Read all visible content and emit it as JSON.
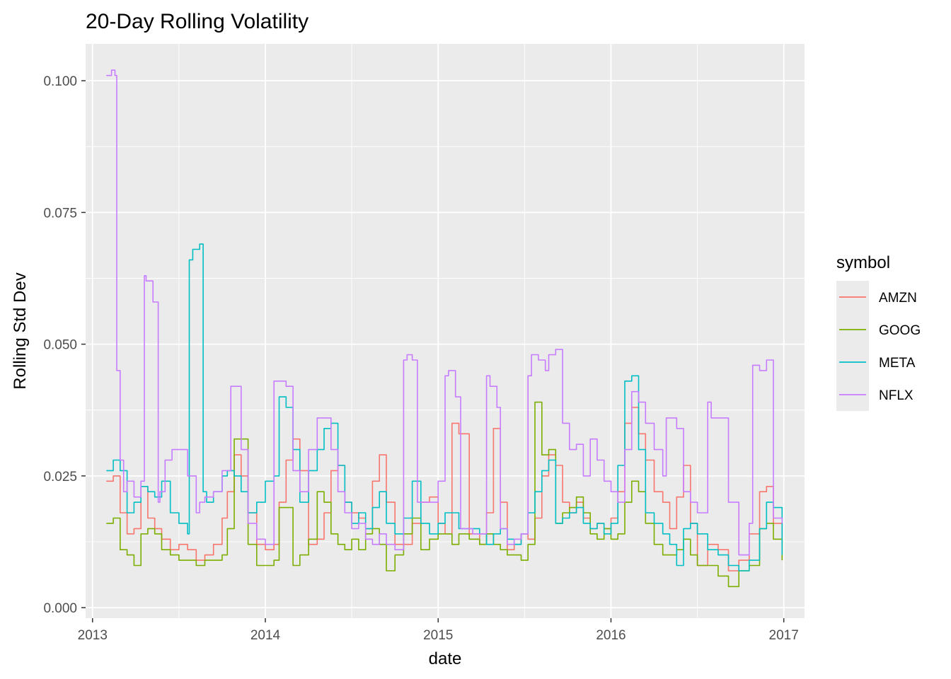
{
  "chart_data": {
    "type": "line",
    "title": "20-Day Rolling Volatility",
    "xlabel": "date",
    "ylabel": "Rolling Std Dev",
    "xlim": [
      2012.96,
      2017.12
    ],
    "ylim": [
      -0.002,
      0.107
    ],
    "x_ticks": [
      2013,
      2014,
      2015,
      2016,
      2017
    ],
    "x_tick_labels": [
      "2013",
      "2014",
      "2015",
      "2016",
      "2017"
    ],
    "y_ticks": [
      0.0,
      0.025,
      0.05,
      0.075,
      0.1
    ],
    "y_tick_labels": [
      "0.000",
      "0.025",
      "0.050",
      "0.075",
      "0.100"
    ],
    "grid": true,
    "legend": {
      "title": "symbol",
      "position": "right"
    },
    "series": [
      {
        "name": "AMZN",
        "color": "#F8766D",
        "x": [
          2013.08,
          2013.12,
          2013.16,
          2013.2,
          2013.24,
          2013.28,
          2013.32,
          2013.36,
          2013.4,
          2013.45,
          2013.5,
          2013.55,
          2013.6,
          2013.65,
          2013.7,
          2013.75,
          2013.78,
          2013.82,
          2013.86,
          2013.9,
          2013.95,
          2014.0,
          2014.05,
          2014.08,
          2014.12,
          2014.16,
          2014.2,
          2014.25,
          2014.3,
          2014.34,
          2014.38,
          2014.42,
          2014.46,
          2014.5,
          2014.54,
          2014.58,
          2014.62,
          2014.66,
          2014.7,
          2014.75,
          2014.8,
          2014.85,
          2014.9,
          2014.95,
          2015.0,
          2015.04,
          2015.08,
          2015.12,
          2015.18,
          2015.24,
          2015.28,
          2015.32,
          2015.36,
          2015.4,
          2015.44,
          2015.48,
          2015.52,
          2015.56,
          2015.6,
          2015.64,
          2015.68,
          2015.72,
          2015.76,
          2015.8,
          2015.84,
          2015.88,
          2015.92,
          2015.96,
          2016.0,
          2016.04,
          2016.08,
          2016.12,
          2016.16,
          2016.2,
          2016.25,
          2016.3,
          2016.34,
          2016.38,
          2016.42,
          2016.46,
          2016.5,
          2016.56,
          2016.62,
          2016.68,
          2016.74,
          2016.8,
          2016.86,
          2016.9,
          2016.94,
          2016.99
        ],
        "y": [
          0.024,
          0.025,
          0.018,
          0.014,
          0.015,
          0.023,
          0.017,
          0.015,
          0.013,
          0.011,
          0.012,
          0.011,
          0.009,
          0.01,
          0.012,
          0.017,
          0.022,
          0.029,
          0.025,
          0.018,
          0.012,
          0.011,
          0.012,
          0.02,
          0.028,
          0.032,
          0.026,
          0.012,
          0.013,
          0.018,
          0.026,
          0.027,
          0.02,
          0.018,
          0.017,
          0.015,
          0.024,
          0.029,
          0.02,
          0.012,
          0.012,
          0.016,
          0.02,
          0.021,
          0.016,
          0.014,
          0.035,
          0.033,
          0.014,
          0.012,
          0.018,
          0.034,
          0.02,
          0.011,
          0.012,
          0.014,
          0.013,
          0.017,
          0.025,
          0.029,
          0.027,
          0.02,
          0.018,
          0.02,
          0.017,
          0.015,
          0.016,
          0.015,
          0.017,
          0.022,
          0.035,
          0.038,
          0.033,
          0.028,
          0.022,
          0.02,
          0.015,
          0.021,
          0.027,
          0.016,
          0.008,
          0.012,
          0.011,
          0.007,
          0.009,
          0.014,
          0.022,
          0.023,
          0.016,
          0.012
        ]
      },
      {
        "name": "GOOG",
        "color": "#7CAE00",
        "x": [
          2013.08,
          2013.12,
          2013.16,
          2013.2,
          2013.24,
          2013.28,
          2013.32,
          2013.36,
          2013.4,
          2013.45,
          2013.5,
          2013.55,
          2013.6,
          2013.65,
          2013.7,
          2013.75,
          2013.78,
          2013.82,
          2013.86,
          2013.9,
          2013.95,
          2014.0,
          2014.05,
          2014.08,
          2014.12,
          2014.16,
          2014.2,
          2014.25,
          2014.3,
          2014.34,
          2014.38,
          2014.42,
          2014.46,
          2014.5,
          2014.54,
          2014.58,
          2014.62,
          2014.66,
          2014.7,
          2014.75,
          2014.8,
          2014.85,
          2014.9,
          2014.95,
          2015.0,
          2015.04,
          2015.08,
          2015.12,
          2015.18,
          2015.24,
          2015.28,
          2015.32,
          2015.36,
          2015.4,
          2015.44,
          2015.48,
          2015.52,
          2015.56,
          2015.6,
          2015.64,
          2015.68,
          2015.72,
          2015.76,
          2015.8,
          2015.84,
          2015.88,
          2015.92,
          2015.96,
          2016.0,
          2016.04,
          2016.08,
          2016.12,
          2016.16,
          2016.2,
          2016.25,
          2016.3,
          2016.34,
          2016.38,
          2016.42,
          2016.46,
          2016.5,
          2016.56,
          2016.62,
          2016.68,
          2016.74,
          2016.8,
          2016.86,
          2016.9,
          2016.94,
          2016.99
        ],
        "y": [
          0.016,
          0.017,
          0.011,
          0.01,
          0.008,
          0.014,
          0.015,
          0.014,
          0.011,
          0.01,
          0.009,
          0.009,
          0.008,
          0.009,
          0.009,
          0.01,
          0.015,
          0.032,
          0.032,
          0.012,
          0.008,
          0.008,
          0.009,
          0.019,
          0.019,
          0.008,
          0.01,
          0.013,
          0.022,
          0.02,
          0.014,
          0.012,
          0.011,
          0.013,
          0.011,
          0.014,
          0.015,
          0.012,
          0.007,
          0.01,
          0.014,
          0.017,
          0.011,
          0.013,
          0.014,
          0.014,
          0.012,
          0.014,
          0.013,
          0.012,
          0.014,
          0.012,
          0.011,
          0.01,
          0.01,
          0.009,
          0.012,
          0.039,
          0.029,
          0.03,
          0.016,
          0.018,
          0.019,
          0.021,
          0.018,
          0.014,
          0.013,
          0.015,
          0.013,
          0.014,
          0.02,
          0.024,
          0.022,
          0.016,
          0.012,
          0.01,
          0.01,
          0.011,
          0.013,
          0.01,
          0.008,
          0.008,
          0.006,
          0.004,
          0.007,
          0.008,
          0.015,
          0.016,
          0.013,
          0.009
        ]
      },
      {
        "name": "META",
        "color": "#00BFC4",
        "x": [
          2013.08,
          2013.12,
          2013.16,
          2013.2,
          2013.24,
          2013.28,
          2013.32,
          2013.36,
          2013.4,
          2013.45,
          2013.5,
          2013.55,
          2013.56,
          2013.58,
          2013.62,
          2013.64,
          2013.66,
          2013.7,
          2013.75,
          2013.78,
          2013.82,
          2013.86,
          2013.9,
          2013.95,
          2014.0,
          2014.05,
          2014.08,
          2014.12,
          2014.16,
          2014.2,
          2014.25,
          2014.3,
          2014.34,
          2014.38,
          2014.42,
          2014.46,
          2014.5,
          2014.54,
          2014.58,
          2014.62,
          2014.66,
          2014.7,
          2014.75,
          2014.8,
          2014.85,
          2014.9,
          2014.95,
          2015.0,
          2015.04,
          2015.08,
          2015.12,
          2015.18,
          2015.24,
          2015.28,
          2015.32,
          2015.36,
          2015.4,
          2015.44,
          2015.48,
          2015.52,
          2015.56,
          2015.6,
          2015.64,
          2015.68,
          2015.72,
          2015.76,
          2015.8,
          2015.84,
          2015.88,
          2015.92,
          2015.96,
          2016.0,
          2016.04,
          2016.08,
          2016.12,
          2016.16,
          2016.2,
          2016.25,
          2016.3,
          2016.34,
          2016.38,
          2016.42,
          2016.46,
          2016.5,
          2016.56,
          2016.62,
          2016.68,
          2016.74,
          2016.8,
          2016.86,
          2016.9,
          2016.94,
          2016.99
        ],
        "y": [
          0.026,
          0.028,
          0.026,
          0.018,
          0.02,
          0.023,
          0.022,
          0.021,
          0.024,
          0.018,
          0.016,
          0.014,
          0.066,
          0.068,
          0.069,
          0.022,
          0.02,
          0.022,
          0.025,
          0.026,
          0.025,
          0.022,
          0.018,
          0.02,
          0.024,
          0.025,
          0.04,
          0.038,
          0.03,
          0.02,
          0.026,
          0.03,
          0.034,
          0.035,
          0.027,
          0.02,
          0.016,
          0.018,
          0.015,
          0.019,
          0.022,
          0.016,
          0.014,
          0.017,
          0.024,
          0.016,
          0.014,
          0.016,
          0.018,
          0.018,
          0.015,
          0.015,
          0.014,
          0.012,
          0.014,
          0.015,
          0.013,
          0.012,
          0.014,
          0.018,
          0.022,
          0.026,
          0.028,
          0.016,
          0.017,
          0.018,
          0.019,
          0.016,
          0.015,
          0.016,
          0.014,
          0.016,
          0.027,
          0.043,
          0.044,
          0.03,
          0.018,
          0.016,
          0.014,
          0.012,
          0.008,
          0.015,
          0.016,
          0.014,
          0.011,
          0.01,
          0.008,
          0.007,
          0.009,
          0.015,
          0.02,
          0.019,
          0.01
        ]
      },
      {
        "name": "NFLX",
        "color": "#C77CFF",
        "x": [
          2013.08,
          2013.11,
          2013.13,
          2013.14,
          2013.16,
          2013.18,
          2013.2,
          2013.24,
          2013.28,
          2013.3,
          2013.31,
          2013.35,
          2013.38,
          2013.39,
          2013.42,
          2013.46,
          2013.5,
          2013.55,
          2013.6,
          2013.62,
          2013.65,
          2013.7,
          2013.75,
          2013.8,
          2013.82,
          2013.86,
          2013.9,
          2013.95,
          2014.0,
          2014.05,
          2014.1,
          2014.12,
          2014.16,
          2014.2,
          2014.25,
          2014.3,
          2014.34,
          2014.38,
          2014.42,
          2014.46,
          2014.5,
          2014.54,
          2014.58,
          2014.62,
          2014.66,
          2014.7,
          2014.75,
          2014.8,
          2014.82,
          2014.85,
          2014.88,
          2014.95,
          2015.0,
          2015.04,
          2015.06,
          2015.1,
          2015.13,
          2015.2,
          2015.28,
          2015.3,
          2015.34,
          2015.36,
          2015.4,
          2015.44,
          2015.48,
          2015.52,
          2015.54,
          2015.58,
          2015.62,
          2015.64,
          2015.68,
          2015.72,
          2015.76,
          2015.8,
          2015.84,
          2015.88,
          2015.92,
          2015.96,
          2016.0,
          2016.04,
          2016.08,
          2016.12,
          2016.16,
          2016.2,
          2016.25,
          2016.3,
          2016.32,
          2016.38,
          2016.42,
          2016.46,
          2016.5,
          2016.56,
          2016.58,
          2016.62,
          2016.68,
          2016.74,
          2016.8,
          2016.82,
          2016.86,
          2016.9,
          2016.94,
          2016.99
        ],
        "y": [
          0.101,
          0.102,
          0.101,
          0.045,
          0.028,
          0.022,
          0.024,
          0.021,
          0.024,
          0.063,
          0.062,
          0.058,
          0.02,
          0.022,
          0.028,
          0.03,
          0.03,
          0.025,
          0.018,
          0.02,
          0.021,
          0.022,
          0.026,
          0.042,
          0.042,
          0.03,
          0.016,
          0.013,
          0.012,
          0.043,
          0.043,
          0.042,
          0.026,
          0.022,
          0.03,
          0.036,
          0.036,
          0.03,
          0.022,
          0.018,
          0.015,
          0.016,
          0.013,
          0.012,
          0.014,
          0.012,
          0.011,
          0.047,
          0.048,
          0.047,
          0.02,
          0.02,
          0.024,
          0.044,
          0.045,
          0.04,
          0.015,
          0.014,
          0.044,
          0.042,
          0.038,
          0.015,
          0.012,
          0.013,
          0.014,
          0.044,
          0.048,
          0.047,
          0.045,
          0.048,
          0.049,
          0.035,
          0.03,
          0.031,
          0.025,
          0.032,
          0.028,
          0.024,
          0.022,
          0.02,
          0.03,
          0.041,
          0.039,
          0.035,
          0.03,
          0.025,
          0.036,
          0.034,
          0.022,
          0.02,
          0.018,
          0.039,
          0.036,
          0.036,
          0.02,
          0.01,
          0.016,
          0.046,
          0.045,
          0.047,
          0.017,
          0.016
        ]
      }
    ]
  }
}
